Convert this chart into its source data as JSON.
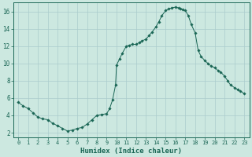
{
  "xlabel": "Humidex (Indice chaleur)",
  "ylabel": "",
  "background_color": "#cce8e0",
  "grid_color": "#aacccc",
  "line_color": "#1a6655",
  "marker_color": "#1a6655",
  "xlim": [
    -0.5,
    23.5
  ],
  "ylim": [
    1.5,
    17.0
  ],
  "yticks": [
    2,
    4,
    6,
    8,
    10,
    12,
    14,
    16
  ],
  "xticks": [
    0,
    1,
    2,
    3,
    4,
    5,
    6,
    7,
    8,
    9,
    10,
    11,
    12,
    13,
    14,
    15,
    16,
    17,
    18,
    19,
    20,
    21,
    22,
    23
  ],
  "x": [
    0,
    0.5,
    1,
    1.5,
    2,
    2.5,
    3,
    3.5,
    4,
    4.5,
    5,
    5.5,
    6,
    6.5,
    7,
    7.5,
    8,
    8.5,
    9,
    9.3,
    9.6,
    9.9,
    10,
    10.3,
    10.6,
    11,
    11.3,
    11.6,
    12,
    12.3,
    12.6,
    13,
    13.3,
    13.6,
    14,
    14.3,
    14.6,
    15,
    15.3,
    15.6,
    16,
    16.3,
    16.5,
    16.7,
    17,
    17.3,
    17.6,
    18,
    18.3,
    18.6,
    19,
    19.3,
    19.6,
    20,
    20.3,
    20.6,
    21,
    21.3,
    21.6,
    22,
    22.3,
    22.6,
    23
  ],
  "y": [
    5.5,
    5.1,
    4.8,
    4.3,
    3.8,
    3.6,
    3.5,
    3.1,
    2.8,
    2.5,
    2.2,
    2.3,
    2.5,
    2.6,
    3.0,
    3.5,
    4.0,
    4.1,
    4.2,
    4.8,
    5.8,
    7.5,
    9.8,
    10.5,
    11.2,
    12.0,
    12.1,
    12.2,
    12.2,
    12.4,
    12.6,
    12.8,
    13.2,
    13.6,
    14.2,
    14.8,
    15.5,
    16.1,
    16.3,
    16.4,
    16.5,
    16.4,
    16.3,
    16.2,
    16.1,
    15.5,
    14.5,
    13.5,
    11.5,
    10.8,
    10.3,
    10.0,
    9.7,
    9.5,
    9.2,
    9.0,
    8.5,
    8.0,
    7.5,
    7.2,
    7.0,
    6.8,
    6.5
  ]
}
